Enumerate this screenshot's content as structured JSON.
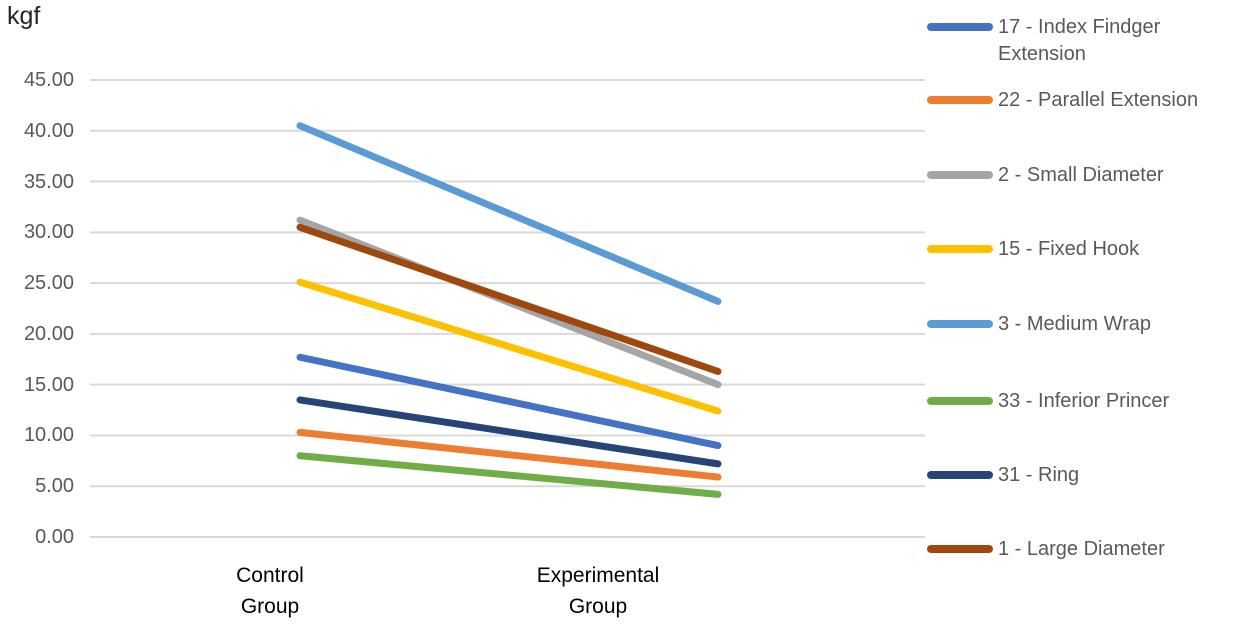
{
  "chart_data": {
    "type": "line",
    "title": "",
    "ylabel": "kgf",
    "xlabel": "",
    "categories": [
      "Control Group",
      "Experimental Group"
    ],
    "yticks": [
      "0.00",
      "5.00",
      "10.00",
      "15.00",
      "20.00",
      "25.00",
      "30.00",
      "35.00",
      "40.00",
      "45.00"
    ],
    "ylim": [
      0,
      45
    ],
    "grid": true,
    "legend_position": "right",
    "gridline_color": "#D9D9D9",
    "tick_label_color": "#595959",
    "series": [
      {
        "name": "17 - Index Findger Extension",
        "color": "#4472C4",
        "values": [
          17.7,
          9.0
        ]
      },
      {
        "name": "22 - Parallel Extension",
        "color": "#ED7D31",
        "values": [
          10.3,
          5.9
        ]
      },
      {
        "name": "2 - Small Diameter",
        "color": "#A5A5A5",
        "values": [
          31.2,
          15.0
        ]
      },
      {
        "name": "15 - Fixed Hook",
        "color": "#FFC000",
        "values": [
          25.1,
          12.4
        ]
      },
      {
        "name": "3 - Medium Wrap",
        "color": "#5B9BD5",
        "values": [
          40.5,
          23.2
        ]
      },
      {
        "name": "33 - Inferior Princer",
        "color": "#70AD47",
        "values": [
          8.0,
          4.2
        ]
      },
      {
        "name": "31 - Ring",
        "color": "#264478",
        "values": [
          13.5,
          7.2
        ]
      },
      {
        "name": "1 - Large Diameter",
        "color": "#9E480E",
        "values": [
          30.5,
          16.3
        ]
      }
    ]
  }
}
